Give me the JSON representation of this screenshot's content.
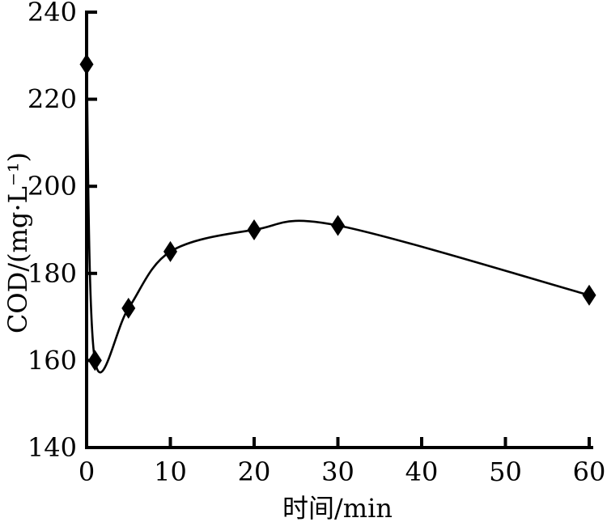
{
  "chart_data": {
    "type": "line",
    "curve_style": "smooth-spline",
    "title": "",
    "xlabel": "时间/min",
    "ylabel": "COD/(mg·L⁻¹)",
    "x": [
      0,
      1,
      5,
      10,
      20,
      30,
      60
    ],
    "y": [
      228,
      160,
      172,
      185,
      190,
      191,
      175
    ],
    "xlim": [
      0,
      60
    ],
    "ylim": [
      140,
      240
    ],
    "x_ticks": [
      0,
      10,
      20,
      30,
      40,
      50,
      60
    ],
    "y_ticks": [
      140,
      160,
      180,
      200,
      220,
      240
    ],
    "marker": "diamond",
    "line_color": "#000000",
    "marker_color": "#000000",
    "axis_color": "#000000",
    "text_color": "#000000",
    "background_color": "#ffffff",
    "grid": false,
    "legend_position": "none"
  }
}
